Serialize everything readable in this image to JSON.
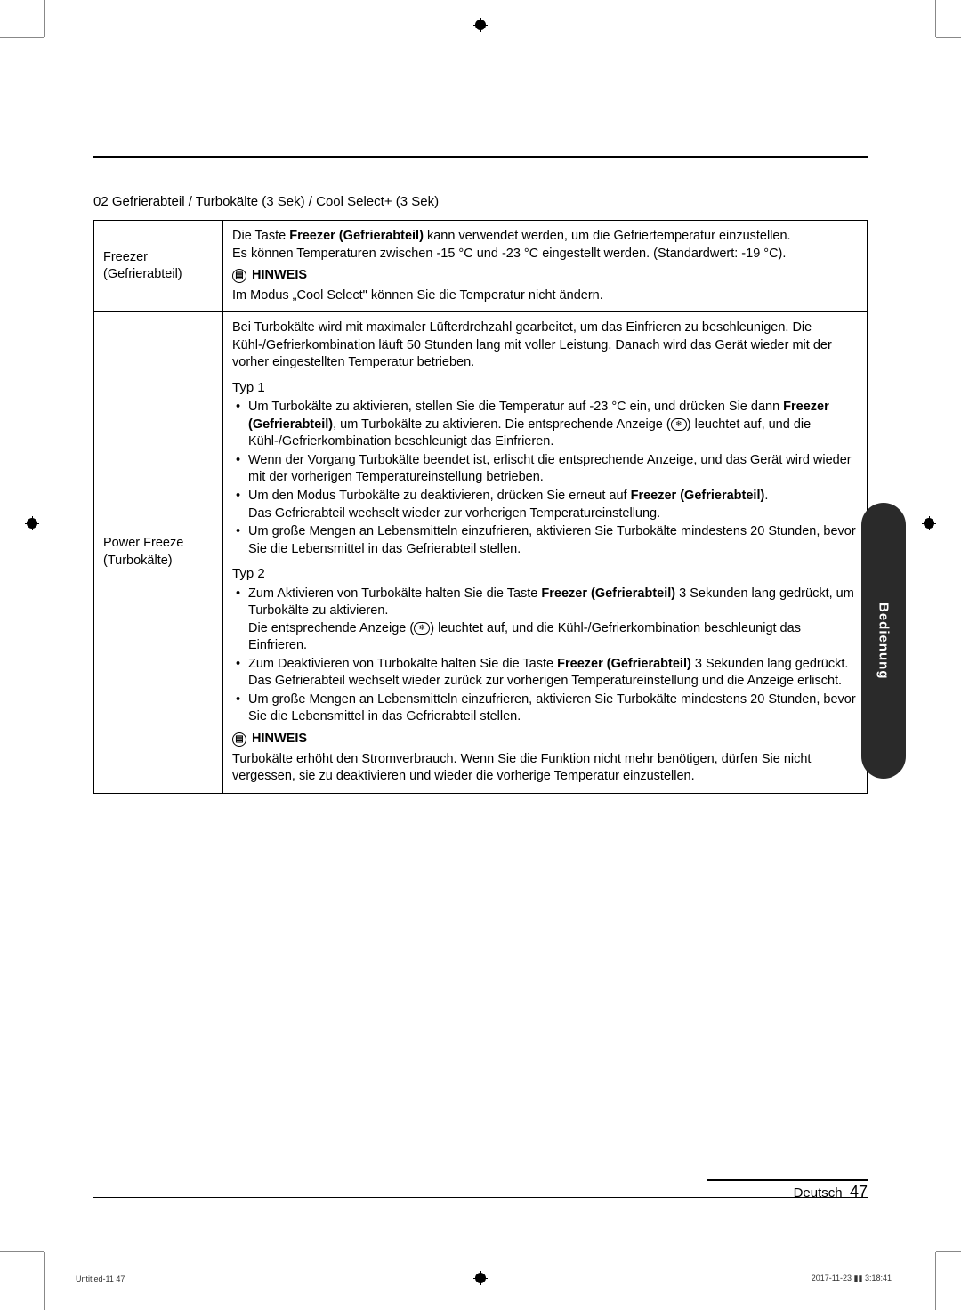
{
  "section_heading": "02  Gefrierabteil / Turbokälte (3 Sek) / Cool Select+ (3 Sek)",
  "row1": {
    "label_line1": "Freezer",
    "label_line2": "(Gefrierabteil)",
    "p1a": "Die Taste ",
    "p1b": "Freezer (Gefrierabteil)",
    "p1c": " kann verwendet werden, um die Gefriertemperatur einzustellen.",
    "p2": "Es können Temperaturen zwischen -15 °C und -23 °C eingestellt werden. (Standardwert: -19 °C).",
    "hinweis_label": "HINWEIS",
    "p3": "Im Modus „Cool Select\" können Sie die Temperatur nicht ändern."
  },
  "row2": {
    "label_line1": "Power Freeze",
    "label_line2": "(Turbokälte)",
    "intro": "Bei Turbokälte wird mit maximaler Lüfterdrehzahl gearbeitet, um das Einfrieren zu beschleunigen. Die Kühl-/Gefrierkombination läuft 50 Stunden lang mit voller Leistung. Danach wird das Gerät wieder mit der vorher eingestellten Temperatur betrieben.",
    "typ1": "Typ 1",
    "t1_b1a": "Um Turbokälte zu aktivieren, stellen Sie die Temperatur auf -23 °C ein, und drücken Sie dann ",
    "t1_b1b": "Freezer (Gefrierabteil)",
    "t1_b1c": ", um Turbokälte zu aktivieren. Die entsprechende Anzeige (",
    "t1_b1d": ") leuchtet auf, und die Kühl-/Gefrierkombination beschleunigt das Einfrieren.",
    "t1_b2": "Wenn der Vorgang Turbokälte beendet ist, erlischt die entsprechende Anzeige, und das Gerät wird wieder mit der vorherigen Temperatureinstellung betrieben.",
    "t1_b3a": "Um den Modus Turbokälte zu deaktivieren, drücken Sie erneut auf ",
    "t1_b3b": "Freezer (Gefrierabteil)",
    "t1_b3c": ".",
    "t1_b3d": "Das Gefrierabteil wechselt wieder zur vorherigen Temperatureinstellung.",
    "t1_b4": "Um große Mengen an Lebensmitteln einzufrieren, aktivieren Sie Turbokälte mindestens 20 Stunden, bevor Sie die Lebensmittel in das Gefrierabteil stellen.",
    "typ2": "Typ 2",
    "t2_b1a": "Zum Aktivieren von Turbokälte halten Sie die Taste ",
    "t2_b1b": "Freezer (Gefrierabteil)",
    "t2_b1c": " 3 Sekunden lang gedrückt, um Turbokälte zu aktivieren.",
    "t2_b1d": "Die entsprechende Anzeige (",
    "t2_b1e": ") leuchtet auf, und die Kühl-/Gefrierkombination beschleunigt das Einfrieren.",
    "t2_b2a": "Zum Deaktivieren von Turbokälte halten Sie die Taste ",
    "t2_b2b": "Freezer (Gefrierabteil)",
    "t2_b2c": " 3 Sekunden lang gedrückt.",
    "t2_b2d": "Das Gefrierabteil wechselt wieder zurück zur vorherigen Temperatureinstellung und die Anzeige erlischt.",
    "t2_b3": "Um große Mengen an Lebensmitteln einzufrieren, aktivieren Sie Turbokälte mindestens 20 Stunden, bevor Sie die Lebensmittel in das Gefrierabteil stellen.",
    "hinweis_label": "HINWEIS",
    "note": "Turbokälte erhöht den Stromverbrauch. Wenn Sie die Funktion nicht mehr benötigen, dürfen Sie nicht vergessen, sie zu deaktivieren und wieder die vorherige Temperatur einzustellen."
  },
  "side_tab": "Bedienung",
  "footer": {
    "lang": "Deutsch",
    "page": "47"
  },
  "meta": {
    "left": "Untitled-11   47",
    "right": "2017-11-23   ▮▮ 3:18:41"
  },
  "icon_glyph": "❄"
}
